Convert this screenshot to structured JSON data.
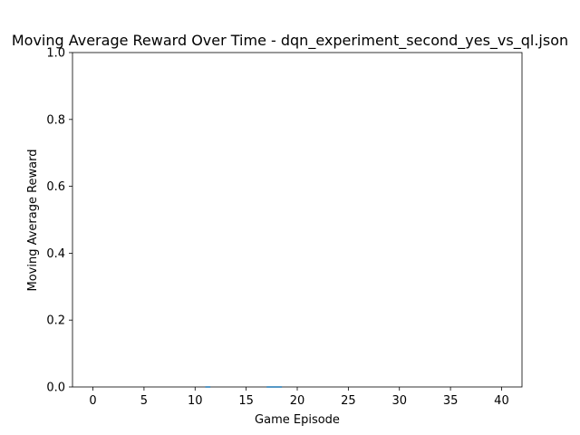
{
  "chart_data": {
    "type": "line",
    "title": "Moving Average Reward Over Time - dqn_experiment_second_yes_vs_ql.json",
    "xlabel": "Game Episode",
    "ylabel": "Moving Average Reward",
    "xlim": [
      -2,
      42
    ],
    "ylim": [
      0,
      1
    ],
    "xticks": [
      0,
      5,
      10,
      15,
      20,
      25,
      30,
      35,
      40
    ],
    "xtick_labels": [
      "0",
      "5",
      "10",
      "15",
      "20",
      "25",
      "30",
      "35",
      "40"
    ],
    "yticks": [
      0.0,
      0.2,
      0.4,
      0.6,
      0.8,
      1.0
    ],
    "ytick_labels": [
      "0.0",
      "0.2",
      "0.4",
      "0.6",
      "0.8",
      "1.0"
    ],
    "grid": false,
    "series": [
      {
        "color": "#1f77b4",
        "x": [
          11,
          11.5
        ],
        "y": [
          0.0,
          0.0
        ]
      },
      {
        "color": "#1f77b4",
        "x": [
          17,
          18.5
        ],
        "y": [
          0.0,
          0.0
        ]
      }
    ]
  }
}
